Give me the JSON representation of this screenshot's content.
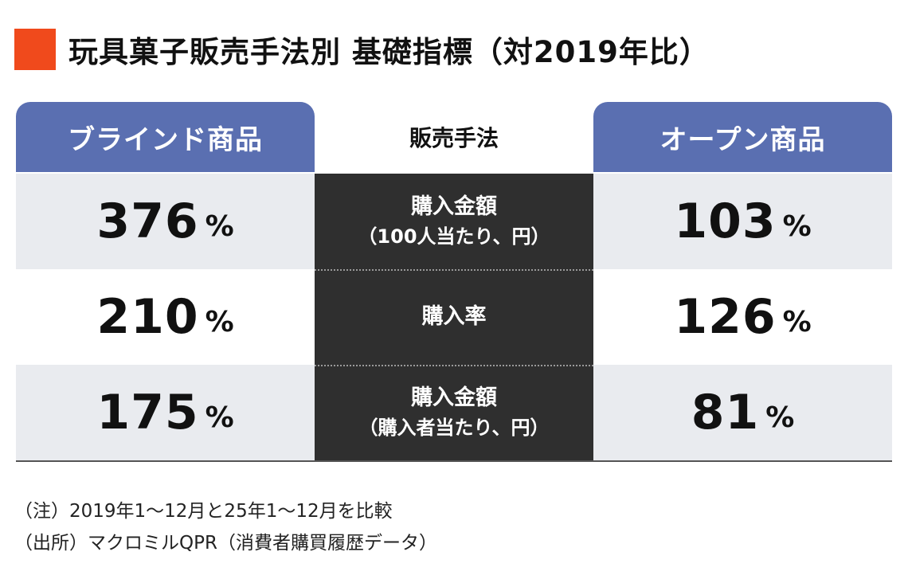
{
  "title": "玩具菓子販売手法別 基礎指標（対2019年比）",
  "colors": {
    "marker": "#f04a1c",
    "header": "#5a6fb1",
    "middle": "#2f2f2f",
    "row_shade": "#e9ebef"
  },
  "chart_data": {
    "type": "table",
    "columns": [
      "ブラインド商品",
      "販売手法",
      "オープン商品"
    ],
    "rows": [
      {
        "metric_line1": "購入金額",
        "metric_line2": "（100人当たり、円）",
        "blind": "376",
        "open": "103"
      },
      {
        "metric_line1": "購入率",
        "metric_line2": "",
        "blind": "210",
        "open": "126"
      },
      {
        "metric_line1": "購入金額",
        "metric_line2": "（購入者当たり、円）",
        "blind": "175",
        "open": "81"
      }
    ],
    "unit": "%",
    "values": {
      "blind": [
        376,
        210,
        175
      ],
      "open": [
        103,
        126,
        81
      ]
    }
  },
  "notes": [
    "（注）2019年1～12月と25年1～12月を比較",
    "（出所）マクロミルQPR（消費者購買履歴データ）"
  ]
}
